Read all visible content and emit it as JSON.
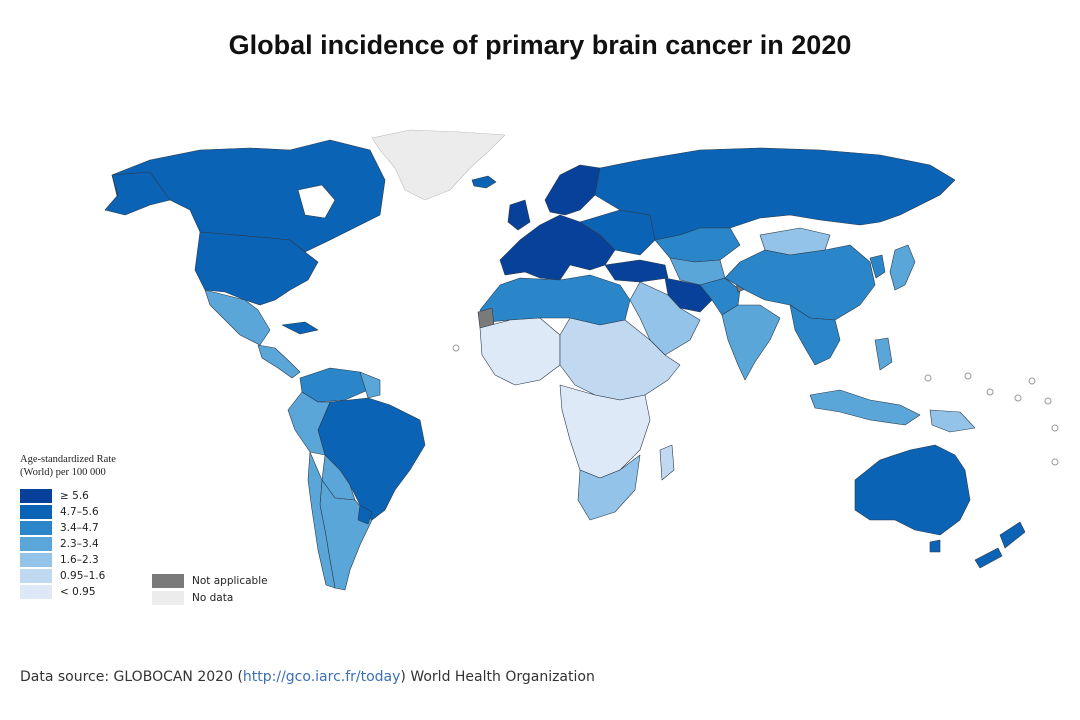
{
  "title": "Global incidence of primary brain cancer in 2020",
  "legend": {
    "title_line1": "Age-standardized Rate",
    "title_line2": "(World) per 100 000",
    "bins": [
      {
        "label": "≥ 5.6",
        "color": "#08419a"
      },
      {
        "label": "4.7–5.6",
        "color": "#0b63b5"
      },
      {
        "label": "3.4–4.7",
        "color": "#2a86c8"
      },
      {
        "label": "2.3–3.4",
        "color": "#5ba6d8"
      },
      {
        "label": "1.6–2.3",
        "color": "#93c3e8"
      },
      {
        "label": "0.95–1.6",
        "color": "#c0d8f0"
      },
      {
        "label": "< 0.95",
        "color": "#dde9f7"
      }
    ],
    "extra": [
      {
        "label": "Not applicable",
        "color": "#7a7a7a"
      },
      {
        "label": "No data",
        "color": "#ececec"
      }
    ]
  },
  "source": {
    "prefix": "Data source: GLOBOCAN 2020 (",
    "link": "http://gco.iarc.fr/today",
    "suffix": ") World Health Organization"
  }
}
